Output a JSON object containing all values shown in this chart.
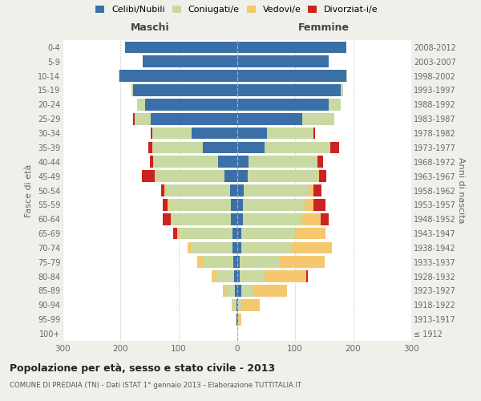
{
  "age_groups": [
    "100+",
    "95-99",
    "90-94",
    "85-89",
    "80-84",
    "75-79",
    "70-74",
    "65-69",
    "60-64",
    "55-59",
    "50-54",
    "45-49",
    "40-44",
    "35-39",
    "30-34",
    "25-29",
    "20-24",
    "15-19",
    "10-14",
    "5-9",
    "0-4"
  ],
  "birth_years": [
    "≤ 1912",
    "1913-1917",
    "1918-1922",
    "1923-1927",
    "1928-1932",
    "1933-1937",
    "1938-1942",
    "1943-1947",
    "1948-1952",
    "1953-1957",
    "1958-1962",
    "1963-1967",
    "1968-1972",
    "1973-1977",
    "1978-1982",
    "1983-1987",
    "1988-1992",
    "1993-1997",
    "1998-2002",
    "2003-2007",
    "2008-2012"
  ],
  "maschi": {
    "celibe": [
      0,
      1,
      1,
      3,
      5,
      6,
      8,
      8,
      10,
      10,
      12,
      22,
      32,
      58,
      78,
      148,
      158,
      178,
      202,
      162,
      192
    ],
    "coniugato": [
      0,
      1,
      6,
      16,
      30,
      52,
      72,
      92,
      102,
      107,
      112,
      118,
      112,
      88,
      68,
      28,
      14,
      4,
      2,
      0,
      0
    ],
    "vedovo": [
      0,
      0,
      2,
      5,
      8,
      10,
      5,
      3,
      2,
      2,
      1,
      1,
      0,
      0,
      0,
      0,
      0,
      0,
      0,
      0,
      0
    ],
    "divorziato": [
      0,
      0,
      0,
      0,
      0,
      0,
      0,
      6,
      14,
      8,
      6,
      22,
      5,
      6,
      2,
      2,
      0,
      0,
      0,
      0,
      0
    ]
  },
  "femmine": {
    "nubile": [
      1,
      2,
      2,
      8,
      5,
      5,
      7,
      8,
      10,
      10,
      12,
      18,
      20,
      48,
      52,
      112,
      158,
      178,
      188,
      158,
      188
    ],
    "coniugata": [
      0,
      0,
      5,
      20,
      42,
      68,
      88,
      92,
      102,
      107,
      112,
      122,
      118,
      112,
      80,
      55,
      20,
      5,
      2,
      0,
      0
    ],
    "vedova": [
      0,
      5,
      32,
      58,
      72,
      78,
      68,
      52,
      32,
      15,
      8,
      2,
      1,
      0,
      0,
      0,
      0,
      0,
      0,
      0,
      0
    ],
    "divorziata": [
      0,
      0,
      0,
      0,
      3,
      0,
      0,
      0,
      14,
      20,
      14,
      12,
      9,
      16,
      3,
      0,
      0,
      0,
      0,
      0,
      0
    ]
  },
  "colors": {
    "celibe": "#3a6fa8",
    "coniugato": "#c8d9a2",
    "vedovo": "#f5c870",
    "divorziato": "#cc2222"
  },
  "xlim": 300,
  "title": "Popolazione per età, sesso e stato civile - 2013",
  "subtitle": "COMUNE DI PREDAIA (TN) - Dati ISTAT 1° gennaio 2013 - Elaborazione TUTTITALIA.IT",
  "ylabel_left": "Fasce di età",
  "ylabel_right": "Anni di nascita",
  "xlabel_left": "Maschi",
  "xlabel_right": "Femmine",
  "background_color": "#f0f0eb",
  "plot_bg": "#ffffff",
  "legend_labels": [
    "Celibi/Nubili",
    "Coniugati/e",
    "Vedovi/e",
    "Divorziat­i/e"
  ]
}
